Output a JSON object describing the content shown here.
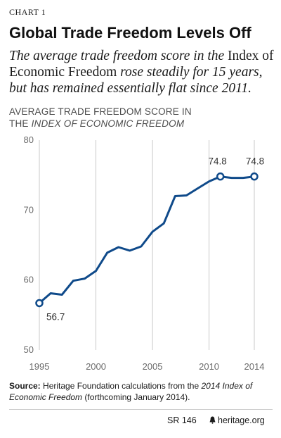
{
  "header": {
    "chart_label": "CHART 1",
    "title": "Global Trade Freedom Levels Off",
    "subtitle": {
      "part1": "The average trade freedom score in the ",
      "part2": "Index of Economic Freedom",
      "part3": " rose steadily for 15 years, but has remained essentially flat since 2011."
    }
  },
  "chart_data": {
    "type": "line",
    "heading_line1": "AVERAGE TRADE FREEDOM SCORE IN",
    "heading_line2_prefix": "THE ",
    "heading_line2_italic": "INDEX OF ECONOMIC FREEDOM",
    "x": [
      1995,
      1996,
      1997,
      1998,
      1999,
      2000,
      2001,
      2002,
      2003,
      2004,
      2005,
      2006,
      2007,
      2008,
      2009,
      2010,
      2011,
      2012,
      2013,
      2014
    ],
    "y": [
      56.7,
      58.1,
      57.9,
      59.9,
      60.2,
      61.3,
      63.9,
      64.7,
      64.2,
      64.8,
      66.9,
      68.1,
      72.0,
      72.1,
      73.1,
      74.1,
      74.8,
      74.6,
      74.6,
      74.8
    ],
    "xlim": [
      1995,
      2014
    ],
    "ylim": [
      50,
      80
    ],
    "x_ticks": [
      1995,
      2000,
      2005,
      2010,
      2014
    ],
    "y_ticks": [
      50,
      60,
      70,
      80
    ],
    "grid": "vertical",
    "line_color": "#0f4a8a",
    "grid_color": "#c8c8c8",
    "annotations": [
      {
        "x": 1995,
        "y": 56.7,
        "text": "56.7",
        "placement": "below-right"
      },
      {
        "x": 2011,
        "y": 74.8,
        "text": "74.8",
        "placement": "above-left"
      },
      {
        "x": 2014,
        "y": 74.8,
        "text": "74.8",
        "placement": "above"
      }
    ]
  },
  "source": {
    "label": "Source:",
    "text1": " Heritage Foundation calculations from the ",
    "italic": "2014 Index of Economic Freedom",
    "text2": " (forthcoming January 2014)."
  },
  "footer": {
    "report_id": "SR 146",
    "site": "heritage.org",
    "site_icon": "liberty-bell-icon"
  }
}
